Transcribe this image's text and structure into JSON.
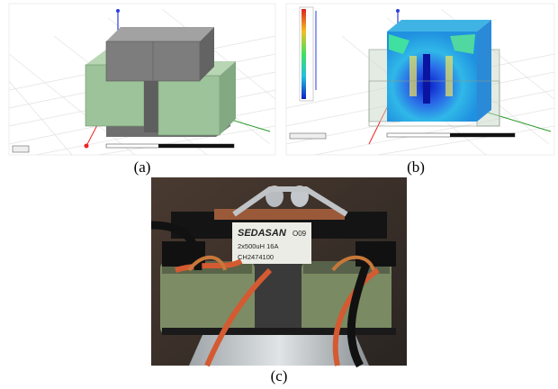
{
  "figure": {
    "panels": [
      {
        "caption": "(a)"
      },
      {
        "caption": "(b)"
      },
      {
        "caption": "(c)",
        "label": {
          "brand": "SEDASAN",
          "code": "O09",
          "rating": "2x500uH 16A",
          "serial": "CH2474100"
        }
      }
    ]
  }
}
